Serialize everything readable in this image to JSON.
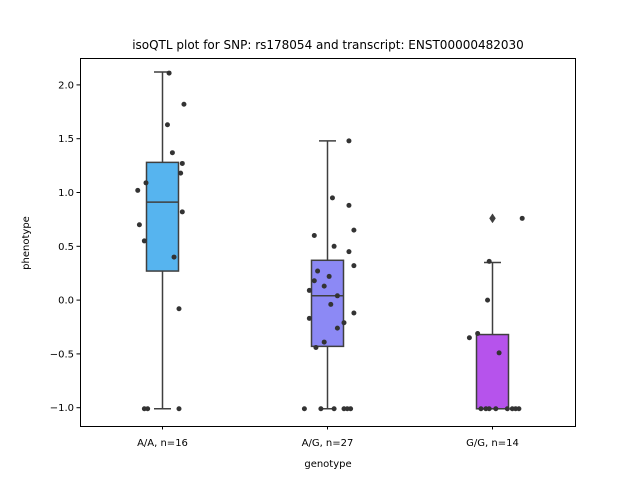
{
  "chart_data": {
    "type": "box",
    "title": "isoQTL plot for SNP: rs178054 and transcript: ENST00000482030",
    "xlabel": "genotype",
    "ylabel": "phenotype",
    "ylim": [
      -1.17,
      2.25
    ],
    "yticks": [
      -1.0,
      -0.5,
      0.0,
      0.5,
      1.0,
      1.5,
      2.0
    ],
    "ytick_labels": [
      "−1.0",
      "−0.5",
      "0.0",
      "0.5",
      "1.0",
      "1.5",
      "2.0"
    ],
    "grid": false,
    "categories": [
      "A/A, n=16",
      "A/G, n=27",
      "G/G, n=14"
    ],
    "colors": [
      "#56b4ef",
      "#8c89f5",
      "#b653ec"
    ],
    "boxes": [
      {
        "q1": 0.27,
        "median": 0.91,
        "q3": 1.28,
        "whisker_low": -1.01,
        "whisker_high": 2.12,
        "outliers": []
      },
      {
        "q1": -0.43,
        "median": 0.04,
        "q3": 0.37,
        "whisker_low": -1.01,
        "whisker_high": 1.48,
        "outliers": []
      },
      {
        "q1": -1.01,
        "median": -1.01,
        "q3": -0.32,
        "whisker_low": -1.01,
        "whisker_high": 0.35,
        "outliers": [
          0.76
        ]
      }
    ],
    "points": [
      {
        "x": -0.15,
        "y": 1.02
      },
      {
        "x": -0.1,
        "y": 1.09
      },
      {
        "x": -0.14,
        "y": 0.7
      },
      {
        "x": -0.11,
        "y": 0.55
      },
      {
        "x": -0.09,
        "y": -1.01
      },
      {
        "x": 0.04,
        "y": 2.11
      },
      {
        "x": 0.03,
        "y": 1.63
      },
      {
        "x": 0.06,
        "y": 1.37
      },
      {
        "x": 0.12,
        "y": 1.27
      },
      {
        "x": 0.11,
        "y": 1.18
      },
      {
        "x": 0.13,
        "y": 1.82
      },
      {
        "x": 0.12,
        "y": 0.82
      },
      {
        "x": 0.07,
        "y": 0.4
      },
      {
        "x": 0.1,
        "y": -0.08
      },
      {
        "x": 0.1,
        "y": -1.01
      },
      {
        "x": -0.11,
        "y": -1.01
      },
      {
        "x": 1.13,
        "y": 1.48
      },
      {
        "x": 1.03,
        "y": 0.95
      },
      {
        "x": 1.13,
        "y": 0.88
      },
      {
        "x": 1.16,
        "y": 0.65
      },
      {
        "x": 0.92,
        "y": 0.6
      },
      {
        "x": 1.04,
        "y": 0.5
      },
      {
        "x": 1.13,
        "y": 0.45
      },
      {
        "x": 1.16,
        "y": 0.32
      },
      {
        "x": 0.94,
        "y": 0.27
      },
      {
        "x": 1.01,
        "y": 0.22
      },
      {
        "x": 0.92,
        "y": 0.18
      },
      {
        "x": 0.98,
        "y": 0.13
      },
      {
        "x": 0.89,
        "y": 0.09
      },
      {
        "x": 1.06,
        "y": 0.04
      },
      {
        "x": 1.02,
        "y": -0.04
      },
      {
        "x": 1.16,
        "y": -0.12
      },
      {
        "x": 0.89,
        "y": -0.17
      },
      {
        "x": 1.1,
        "y": -0.21
      },
      {
        "x": 1.06,
        "y": -0.26
      },
      {
        "x": 0.98,
        "y": -0.39
      },
      {
        "x": 0.93,
        "y": -0.44
      },
      {
        "x": 0.86,
        "y": -1.01
      },
      {
        "x": 0.96,
        "y": -1.01
      },
      {
        "x": 1.04,
        "y": -1.01
      },
      {
        "x": 1.1,
        "y": -1.01
      },
      {
        "x": 1.14,
        "y": -1.01
      },
      {
        "x": 1.12,
        "y": -1.01
      },
      {
        "x": 2.18,
        "y": 0.76
      },
      {
        "x": 1.98,
        "y": 0.36
      },
      {
        "x": 1.97,
        "y": 0.0
      },
      {
        "x": 1.91,
        "y": -0.31
      },
      {
        "x": 1.86,
        "y": -0.35
      },
      {
        "x": 2.04,
        "y": -0.49
      },
      {
        "x": 1.93,
        "y": -1.01
      },
      {
        "x": 1.96,
        "y": -1.01
      },
      {
        "x": 1.98,
        "y": -1.01
      },
      {
        "x": 2.02,
        "y": -1.01
      },
      {
        "x": 2.09,
        "y": -1.01
      },
      {
        "x": 2.12,
        "y": -1.01
      },
      {
        "x": 2.14,
        "y": -1.01
      },
      {
        "x": 2.16,
        "y": -1.01
      }
    ]
  }
}
